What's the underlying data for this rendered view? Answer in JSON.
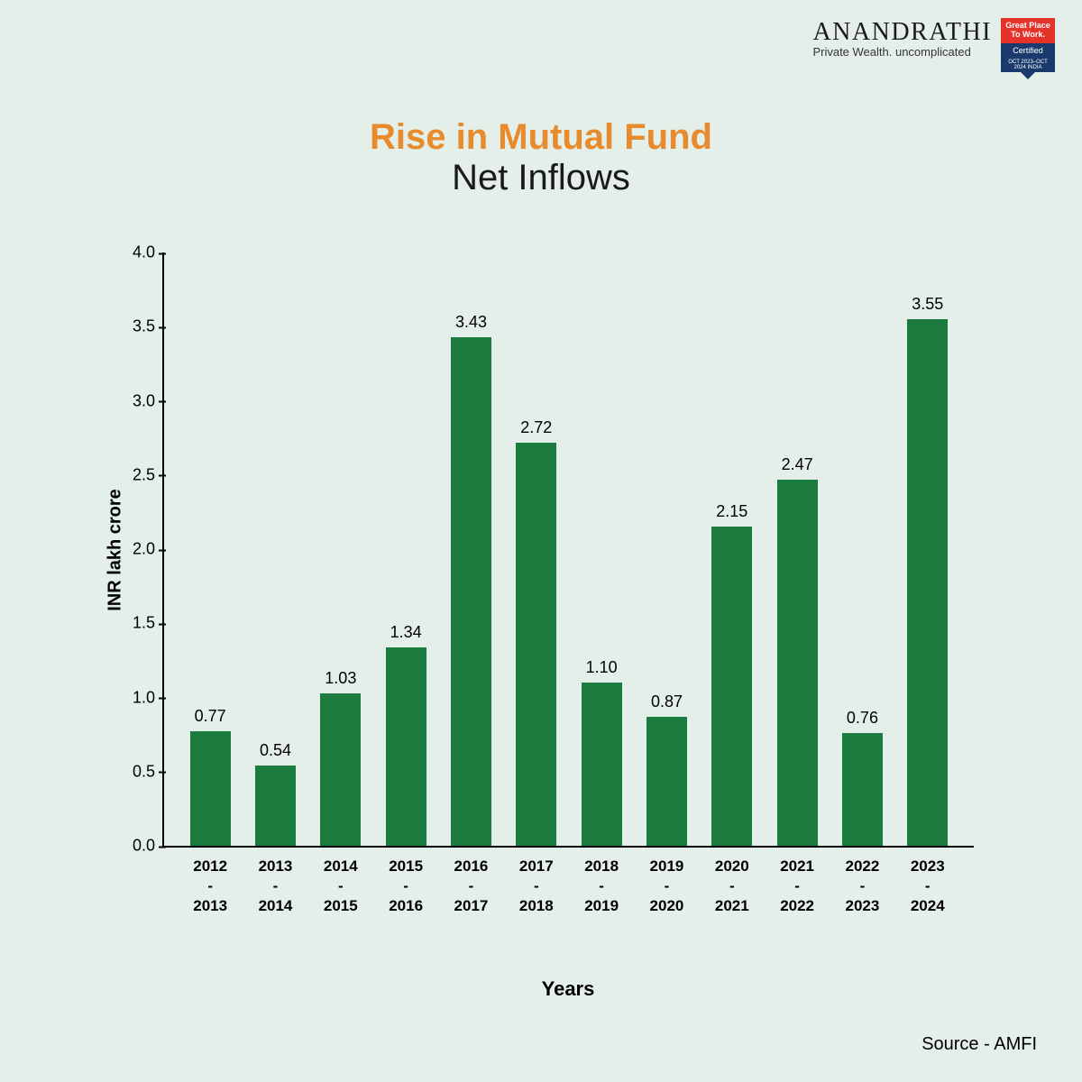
{
  "brand": {
    "name": "ANANDRATHI",
    "tagline": "Private Wealth. uncomplicated"
  },
  "badge": {
    "top": "Great Place To Work.",
    "mid": "Certified",
    "bot": "OCT 2023–OCT 2024 INDIA"
  },
  "title": {
    "line1": "Rise in Mutual Fund",
    "line1_color": "#e88b2d",
    "line2": "Net Inflows",
    "line2_color": "#1a1a1a"
  },
  "chart": {
    "type": "bar",
    "ylabel": "INR lakh crore",
    "xlabel": "Years",
    "ylim": [
      0.0,
      4.0
    ],
    "ytick_step": 0.5,
    "yticks": [
      "0.0",
      "0.5",
      "1.0",
      "1.5",
      "2.0",
      "2.5",
      "3.0",
      "3.5",
      "4.0"
    ],
    "bar_color": "#1b7a3e",
    "axis_color": "#000000",
    "background_color": "#e4efea",
    "bar_width_ratio": 0.62,
    "value_label_fontsize": 18,
    "tick_fontsize": 18,
    "label_fontsize": 20,
    "categories": [
      "2012\n-\n2013",
      "2013\n-\n2014",
      "2014\n-\n2015",
      "2015\n-\n2016",
      "2016\n-\n2017",
      "2017\n-\n2018",
      "2018\n-\n2019",
      "2019\n-\n2020",
      "2020\n-\n2021",
      "2021\n-\n2022",
      "2022\n-\n2023",
      "2023\n-\n2024"
    ],
    "values": [
      0.77,
      0.54,
      1.03,
      1.34,
      3.43,
      2.72,
      1.1,
      0.87,
      2.15,
      2.47,
      0.76,
      3.55
    ],
    "value_labels": [
      "0.77",
      "0.54",
      "1.03",
      "1.34",
      "3.43",
      "2.72",
      "1.10",
      "0.87",
      "2.15",
      "2.47",
      "0.76",
      "3.55"
    ]
  },
  "source": "Source - AMFI"
}
